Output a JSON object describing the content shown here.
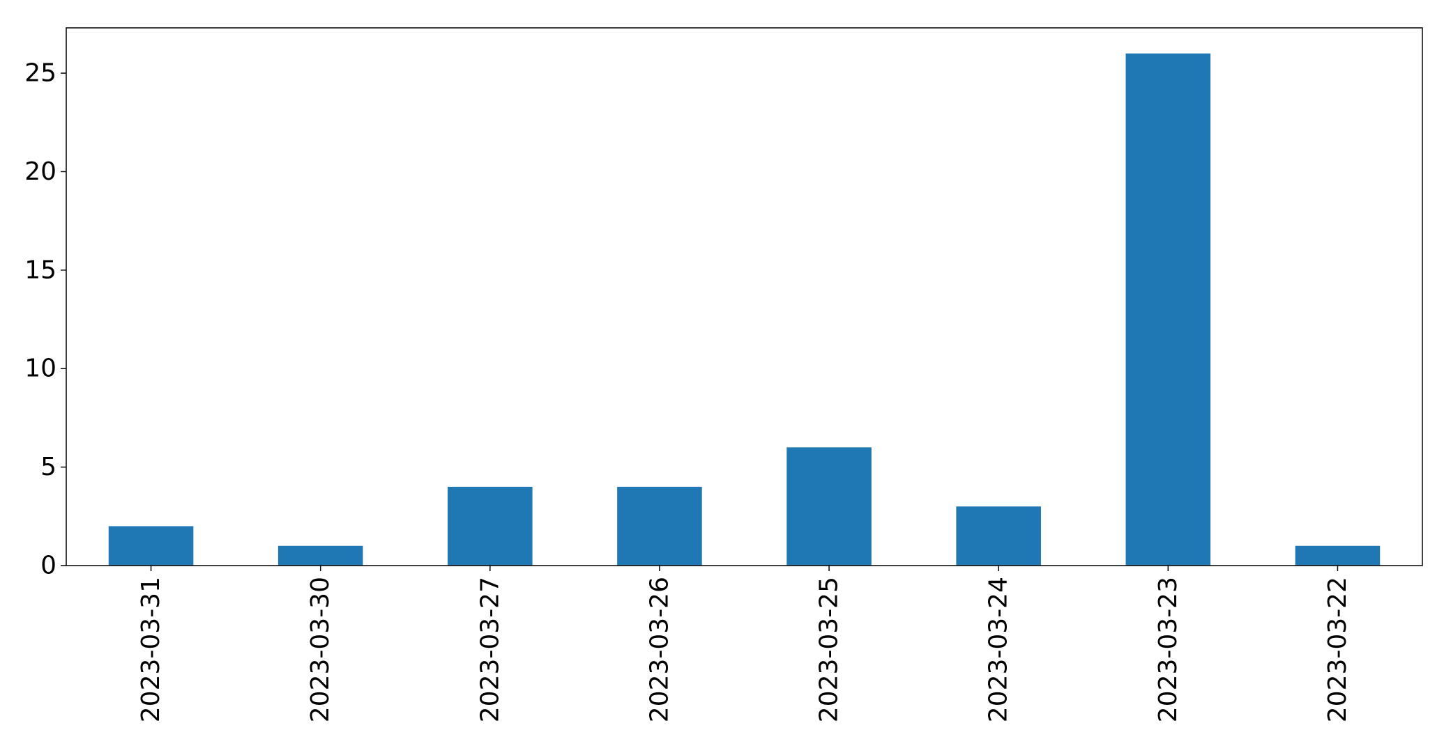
{
  "chart_data": {
    "type": "bar",
    "title": "",
    "xlabel": "",
    "ylabel": "",
    "categories": [
      "2023-03-31",
      "2023-03-30",
      "2023-03-27",
      "2023-03-26",
      "2023-03-25",
      "2023-03-24",
      "2023-03-23",
      "2023-03-22"
    ],
    "values": [
      2,
      1,
      4,
      4,
      6,
      3,
      26,
      1
    ],
    "ylim": [
      0,
      27.3
    ],
    "yticks": [
      "0",
      "5",
      "10",
      "15",
      "20",
      "25"
    ],
    "grid": false,
    "legend": "none",
    "bar_color": "#1f77b4"
  }
}
